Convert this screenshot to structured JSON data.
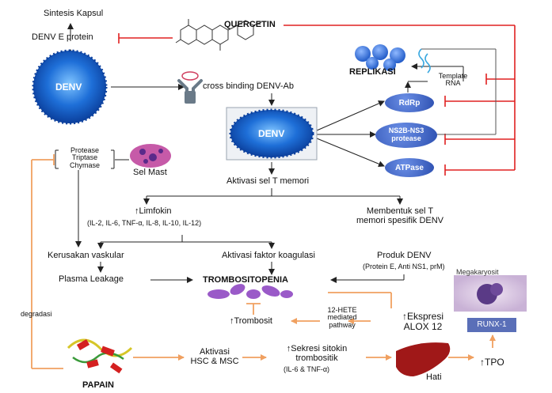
{
  "nodes": {
    "sintesis_kapsul": "Sintesis Kapsul",
    "denv_e_protein": "DENV E protein",
    "quercetin": "QUERCETIN",
    "denv_left": "DENV",
    "cross_binding": "cross binding DENV-Ab",
    "replikasi": "REPLIKASI",
    "template_rna": "Template\nRNA",
    "rdrp": "RdRp",
    "ns2b": "NS2B-NS3\nprotease",
    "atpase": "ATPase",
    "denv_center": "DENV",
    "protease_list": "Protease\nTriptase\nChymase",
    "sel_mast": "Sel Mast",
    "aktivasi_sel_t": "Aktivasi sel T memori",
    "limfokin": "↑Limfokin",
    "limfokin_list": "(IL-2, IL-6, TNF-α, IL-8, IL-10, IL-12)",
    "membentuk": "Membentuk sel T\nmemori spesifik DENV",
    "kerusakan": "Kerusakan vaskular",
    "aktivasi_koagulasi": "Aktivasi faktor koagulasi",
    "produk_denv": "Produk DENV",
    "produk_list": "(Protein E, Anti NS1, prM)",
    "plasma": "Plasma Leakage",
    "trombositopenia": "TROMBOSITOPENIA",
    "degradasi": "degradasi",
    "hete": "12-HETE\nmediated\npathway",
    "ekspresi": "↑Ekspresi\nALOX 12",
    "megakaryosit": "Megakaryosit",
    "runx": "RUNX-1",
    "trombosit": "↑Trombosit",
    "papain": "PAPAIN",
    "aktivasi_hsc": "Aktivasi\nHSC & MSC",
    "sekresi": "↑Sekresi sitokin\ntrombositik",
    "sekresi_list": "(IL-6 & TNF-α)",
    "hati": "Hati",
    "tpo": "↑TPO"
  },
  "colors": {
    "inhibition": "#e02020",
    "papain_path": "#f0a060",
    "virus_blue": "#1e6fd8",
    "enzyme_blue": "#3a6bc8",
    "runx_blue": "#5a6fb8",
    "liver": "#a01818",
    "platelet": "#9a5ac8"
  }
}
